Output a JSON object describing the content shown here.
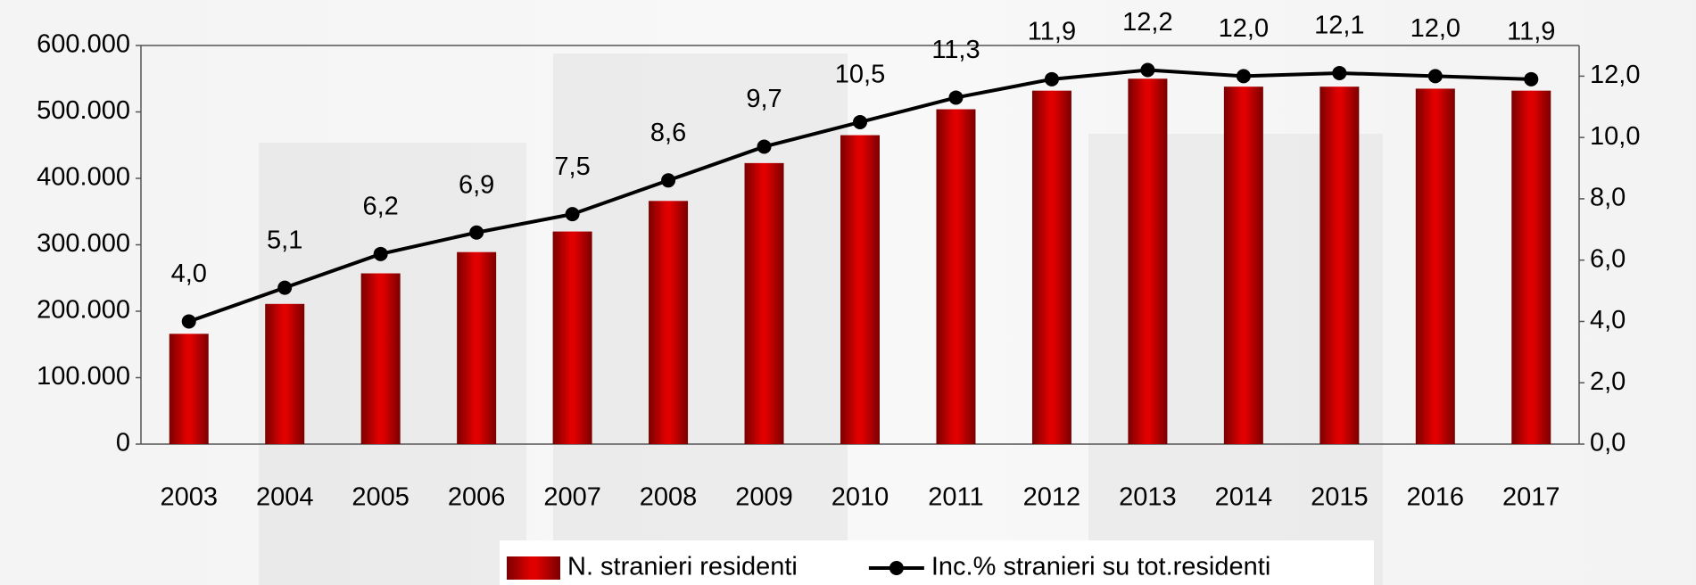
{
  "chart_data": {
    "type": "bar-line",
    "categories": [
      "2003",
      "2004",
      "2005",
      "2006",
      "2007",
      "2008",
      "2009",
      "2010",
      "2011",
      "2012",
      "2013",
      "2014",
      "2015",
      "2016",
      "2017"
    ],
    "series": [
      {
        "name": "N. stranieri residenti",
        "type": "bar",
        "color": "#e00000",
        "values": [
          166000,
          211000,
          257000,
          289000,
          320000,
          366000,
          423000,
          465000,
          504000,
          532000,
          550000,
          538000,
          538000,
          535000,
          532000
        ]
      },
      {
        "name": "Inc.% stranieri su tot.residenti",
        "type": "line",
        "axis": "y2",
        "color": "#000000",
        "values": [
          4.0,
          5.1,
          6.2,
          6.9,
          7.5,
          8.6,
          9.7,
          10.5,
          11.3,
          11.9,
          12.2,
          12.0,
          12.1,
          12.0,
          11.9
        ],
        "value_labels": [
          "4,0",
          "5,1",
          "6,2",
          "6,9",
          "7,5",
          "8,6",
          "9,7",
          "10,5",
          "11,3",
          "11,9",
          "12,2",
          "12,0",
          "12,1",
          "12,0",
          "11,9"
        ]
      }
    ],
    "ylim": [
      0,
      600000
    ],
    "yticks": [
      0,
      {
        "value": 100000,
        "label": "100.000"
      },
      {
        "value": 200000,
        "label": "200.000"
      },
      {
        "value": 300000,
        "label": "300.000"
      },
      {
        "value": 400000,
        "label": "400.000"
      },
      {
        "value": 500000,
        "label": "500.000"
      },
      {
        "value": 600000,
        "label": "600.000"
      }
    ],
    "y2lim": [
      0,
      13
    ],
    "y2ticks": [
      {
        "value": 0,
        "label": "0,0"
      },
      {
        "value": 2,
        "label": "2,0"
      },
      {
        "value": 4,
        "label": "4,0"
      },
      {
        "value": 6,
        "label": "6,0"
      },
      {
        "value": 8,
        "label": "8,0"
      },
      {
        "value": 10,
        "label": "10,0"
      },
      {
        "value": 12,
        "label": "12,0"
      }
    ],
    "grid": false,
    "legend": "bottom"
  }
}
